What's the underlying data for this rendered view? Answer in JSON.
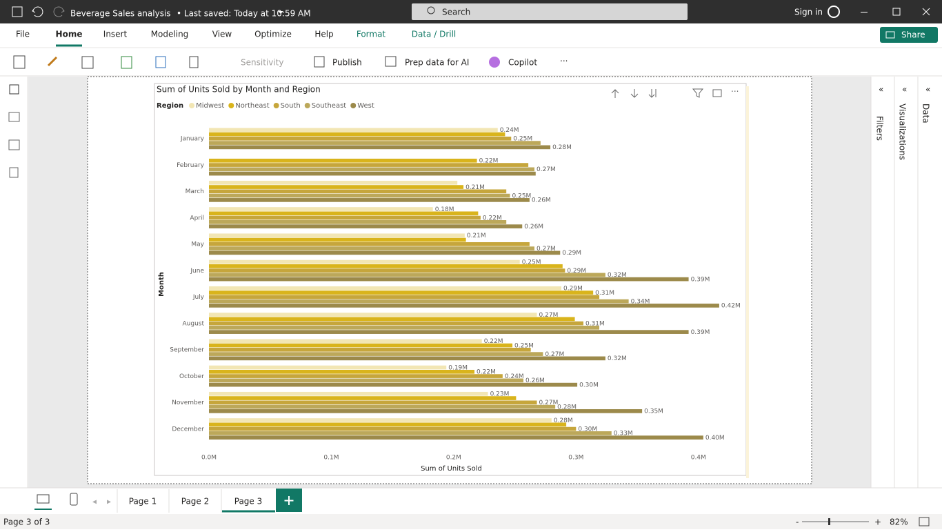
{
  "titlebar": {
    "document": "Beverage Sales analysis",
    "status": "• Last saved: Today at 10:59 AM",
    "search": "Search",
    "sign_in": "Sign in"
  },
  "ribbon": {
    "tabs": [
      "File",
      "Home",
      "Insert",
      "Modeling",
      "View",
      "Optimize",
      "Help",
      "Format",
      "Data / Drill"
    ],
    "share": "Share",
    "tools": [
      "Sensitivity",
      "Publish",
      "Prep data for AI",
      "Copilot"
    ]
  },
  "panes": [
    "Filters",
    "Visualizations",
    "Data"
  ],
  "pages": [
    "Page 1",
    "Page 2",
    "Page 3"
  ],
  "status": {
    "page": "Page 3 of 3",
    "zoom": "82%"
  },
  "chart_data": {
    "type": "bar",
    "orientation": "horizontal",
    "title": "Sum of Units Sold by Month and Region",
    "legend_title": "Region",
    "x_label": "Sum of Units Sold",
    "y_label": "Month",
    "categories": [
      "January",
      "February",
      "March",
      "April",
      "May",
      "June",
      "July",
      "August",
      "September",
      "October",
      "November",
      "December"
    ],
    "series": [
      {
        "name": "Midwest",
        "color": "#f2e6b4",
        "values": [
          236000,
          null,
          203000,
          183000,
          209000,
          254000,
          288000,
          268000,
          223000,
          194000,
          228000,
          280000
        ],
        "value_labels": [
          "0.24M",
          null,
          null,
          "0.18M",
          "0.21M",
          "0.25M",
          "0.29M",
          "0.27M",
          "0.22M",
          "0.19M",
          "0.23M",
          "0.28M"
        ]
      },
      {
        "name": "Northeast",
        "color": "#d9b41c",
        "values": [
          242000,
          219000,
          208000,
          220000,
          210000,
          289000,
          314000,
          299000,
          248000,
          217000,
          251000,
          292000
        ],
        "value_labels": [
          null,
          "0.22M",
          "0.21M",
          null,
          null,
          null,
          "0.31M",
          null,
          "0.25M",
          "0.22M",
          null,
          null
        ]
      },
      {
        "name": "South",
        "color": "#c6a63c",
        "values": [
          247000,
          261000,
          243000,
          222000,
          262000,
          291000,
          319000,
          306000,
          263000,
          240000,
          268000,
          300000
        ],
        "value_labels": [
          "0.25M",
          null,
          null,
          "0.22M",
          null,
          "0.29M",
          null,
          "0.31M",
          null,
          "0.24M",
          "0.27M",
          "0.30M"
        ]
      },
      {
        "name": "Southeast",
        "color": "#bca85a",
        "values": [
          271000,
          266000,
          246000,
          243000,
          266000,
          324000,
          343000,
          319000,
          273000,
          257000,
          283000,
          329000
        ],
        "value_labels": [
          null,
          "0.27M",
          "0.25M",
          null,
          "0.27M",
          "0.32M",
          "0.34M",
          null,
          "0.27M",
          "0.26M",
          "0.28M",
          "0.33M"
        ]
      },
      {
        "name": "West",
        "color": "#9c8a4b",
        "values": [
          279000,
          267000,
          262000,
          256000,
          287000,
          392000,
          417000,
          392000,
          324000,
          301000,
          354000,
          404000
        ],
        "value_labels": [
          "0.28M",
          null,
          "0.26M",
          "0.26M",
          "0.29M",
          "0.39M",
          "0.42M",
          "0.39M",
          "0.32M",
          "0.30M",
          "0.35M",
          "0.40M"
        ]
      }
    ],
    "xlim": [
      0,
      430000
    ],
    "xticks": [
      {
        "value": 0,
        "label": "0.0M"
      },
      {
        "value": 100000,
        "label": "0.1M"
      },
      {
        "value": 200000,
        "label": "0.2M"
      },
      {
        "value": 300000,
        "label": "0.3M"
      },
      {
        "value": 400000,
        "label": "0.4M"
      }
    ],
    "legend": "top-left"
  }
}
